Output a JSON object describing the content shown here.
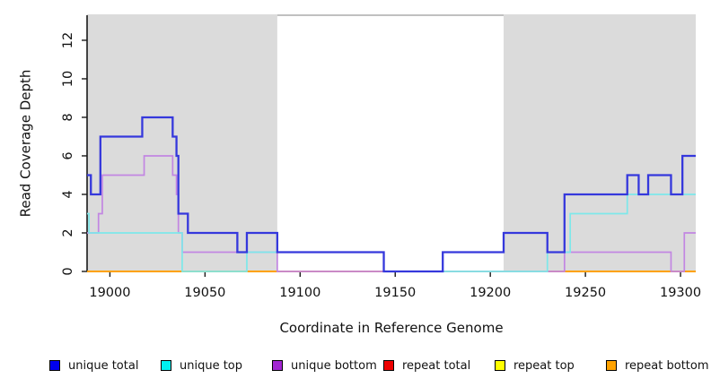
{
  "chart_data": {
    "type": "line",
    "subtype": "step-coverage",
    "title": "",
    "xlabel": "Coordinate in Reference Genome",
    "ylabel": "Read Coverage Depth",
    "xlim": [
      18988,
      19308
    ],
    "ylim": [
      0,
      13.3
    ],
    "xticks": [
      19000,
      19050,
      19100,
      19150,
      19200,
      19250,
      19300
    ],
    "yticks": [
      0,
      2,
      4,
      6,
      8,
      10,
      12
    ],
    "grid": false,
    "legend_position": "bottom",
    "highlight_regions": [
      [
        18988,
        19088
      ],
      [
        19207,
        19308
      ]
    ],
    "highlight_color": "#dbdbdb",
    "gap_top_border_color": "#9a9a9a",
    "axis_color": "#1a1a1a",
    "series": [
      {
        "name": "repeat total",
        "color": "#dd0000",
        "width": 1.5,
        "points": [
          [
            18988,
            0
          ]
        ]
      },
      {
        "name": "repeat top",
        "color": "#ffff00",
        "width": 1.5,
        "points": [
          [
            18988,
            0
          ]
        ]
      },
      {
        "name": "repeat bottom",
        "color": "#ffa200",
        "width": 2,
        "points": [
          [
            18988,
            0
          ]
        ]
      },
      {
        "name": "unique bottom",
        "color": "#c286e2",
        "width": 1.7,
        "points": [
          [
            18988,
            2
          ],
          [
            18994,
            3
          ],
          [
            18996,
            5
          ],
          [
            19018,
            6
          ],
          [
            19033,
            5
          ],
          [
            19035,
            4
          ],
          [
            19036,
            2
          ],
          [
            19038,
            1
          ],
          [
            19088,
            0
          ],
          [
            19239,
            1
          ],
          [
            19295,
            0
          ],
          [
            19302,
            2
          ]
        ]
      },
      {
        "name": "unique top",
        "color": "#7de8ea",
        "width": 1.7,
        "points": [
          [
            18988,
            3
          ],
          [
            18989,
            2
          ],
          [
            19038,
            0
          ],
          [
            19072,
            1
          ],
          [
            19144,
            0
          ],
          [
            19230,
            1
          ],
          [
            19242,
            3
          ],
          [
            19272,
            4
          ]
        ]
      },
      {
        "name": "unique total",
        "color": "#3538dc",
        "width": 2.3,
        "points": [
          [
            18988,
            5
          ],
          [
            18990,
            4
          ],
          [
            18995,
            7
          ],
          [
            19017,
            8
          ],
          [
            19033,
            7
          ],
          [
            19035,
            6
          ],
          [
            19036,
            3
          ],
          [
            19041,
            2
          ],
          [
            19067,
            1
          ],
          [
            19072,
            2
          ],
          [
            19088,
            1
          ],
          [
            19144,
            0
          ],
          [
            19175,
            1
          ],
          [
            19207,
            2
          ],
          [
            19230,
            1
          ],
          [
            19239,
            4
          ],
          [
            19272,
            5
          ],
          [
            19278,
            4
          ],
          [
            19283,
            5
          ],
          [
            19295,
            4
          ],
          [
            19301,
            6
          ]
        ]
      }
    ]
  },
  "axis_titles": {
    "x": "Coordinate in Reference Genome",
    "y": "Read Coverage Depth"
  },
  "legend": {
    "items": [
      {
        "label": "unique total",
        "color": "#0000ee"
      },
      {
        "label": "unique top",
        "color": "#00efef"
      },
      {
        "label": "unique bottom",
        "color": "#a226d2"
      },
      {
        "label": "repeat total",
        "color": "#ee0000"
      },
      {
        "label": "repeat top",
        "color": "#ffff00"
      },
      {
        "label": "repeat bottom",
        "color": "#ffa200"
      }
    ]
  }
}
